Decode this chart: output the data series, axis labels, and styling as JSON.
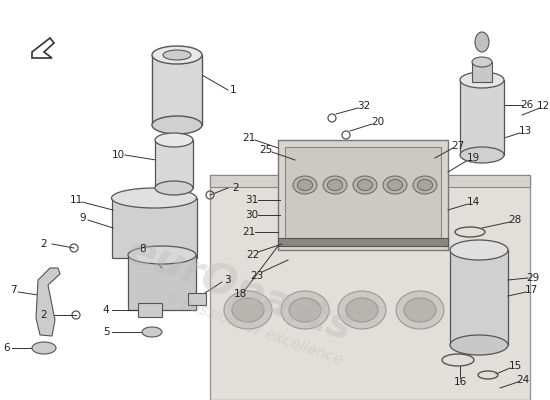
{
  "background_color": "#ffffff",
  "watermark_text1": "eurOparts",
  "watermark_text2": "a passion for excellence",
  "label_color": "#222222",
  "label_fontsize": 7.5,
  "line_color": "#333333",
  "line_width": 0.7,
  "part_color": "#555555",
  "part_lw": 0.9
}
